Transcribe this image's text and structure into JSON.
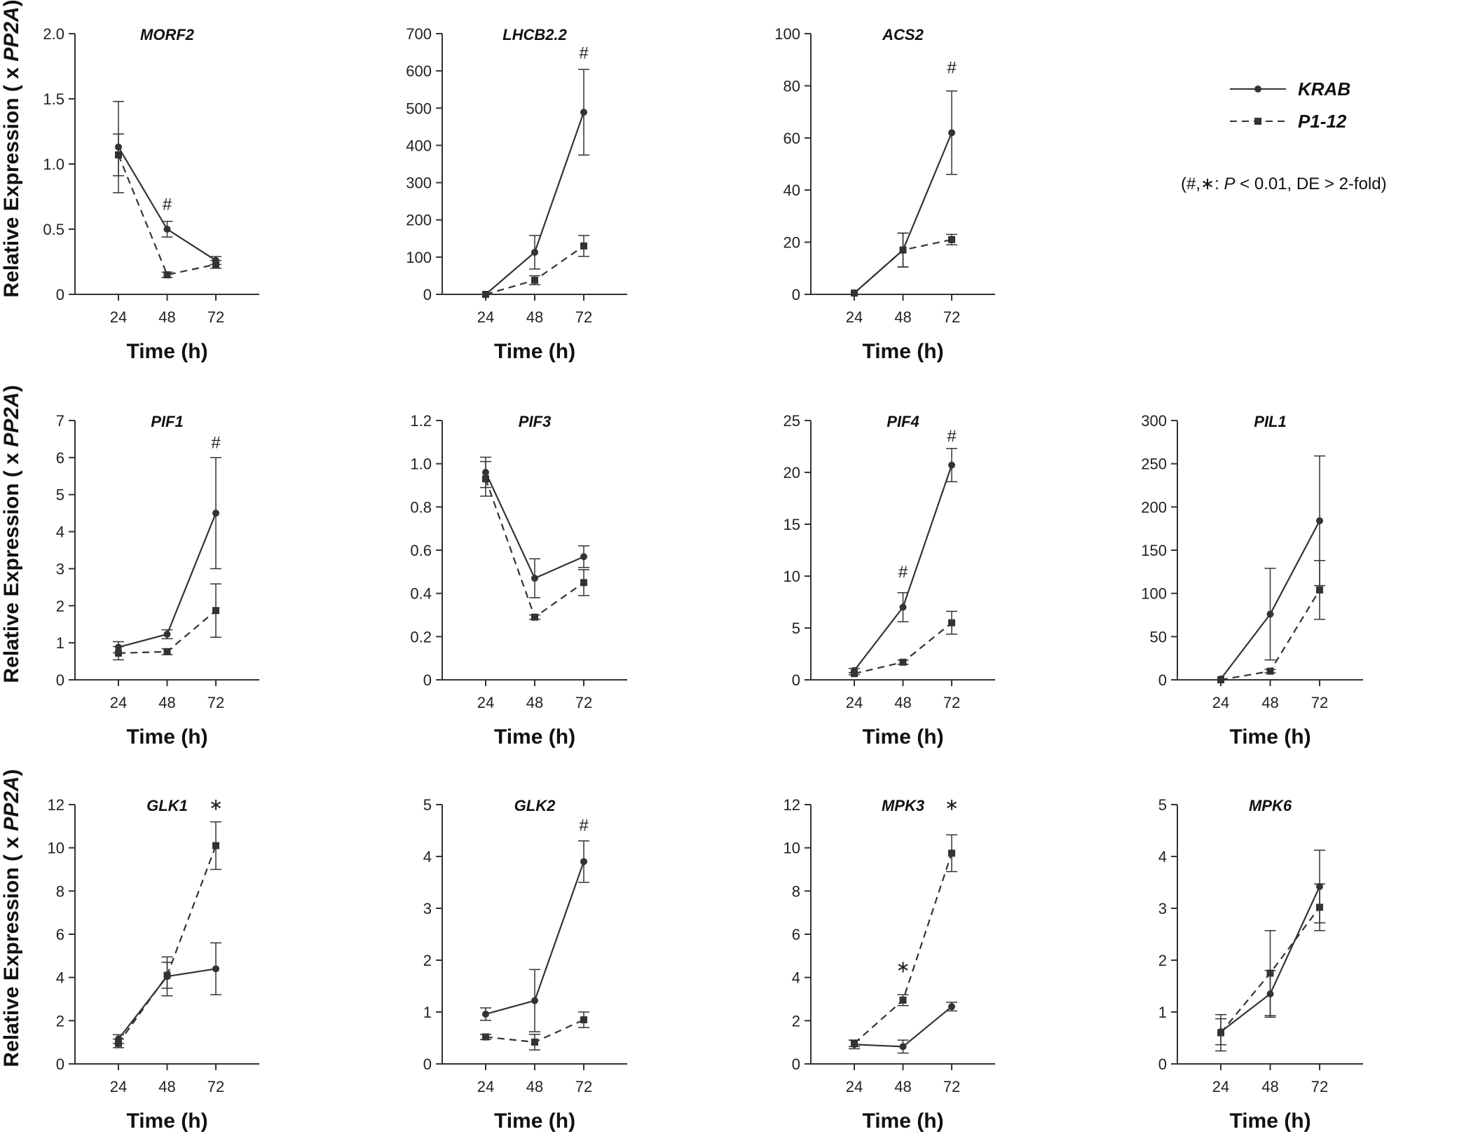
{
  "figure": {
    "ylabel_parts": [
      "Relative Expression ( x ",
      "PP2A",
      ")"
    ],
    "legend": {
      "entries": [
        {
          "name": "KRAB",
          "line": "solid",
          "marker": "circle"
        },
        {
          "name": "P1-12",
          "line": "dashed",
          "marker": "square"
        }
      ],
      "note": {
        "prefix": "(#,",
        "star": "∗",
        "mid": ": ",
        "p": "P",
        "rest": " < 0.01, DE > 2-fold)"
      }
    },
    "color": "#333333"
  },
  "chart_data": [
    {
      "type": "line",
      "title": "MORF2",
      "xlabel": "Time (h)",
      "ylabel": "Relative Expression ( x PP2A)",
      "categories": [
        "24",
        "48",
        "72"
      ],
      "ylim": [
        0,
        2.0
      ],
      "yticks": [
        "0",
        "0.5",
        "1.0",
        "1.5",
        "2.0"
      ],
      "ytick_values": [
        0,
        0.5,
        1.0,
        1.5,
        2.0
      ],
      "series": [
        {
          "name": "KRAB",
          "values": [
            1.13,
            0.5,
            0.26
          ],
          "err": [
            0.35,
            0.06,
            0.03
          ]
        },
        {
          "name": "P1-12",
          "values": [
            1.07,
            0.15,
            0.23
          ],
          "err": [
            0.16,
            0.02,
            0.03
          ]
        }
      ],
      "markers": [
        {
          "x": "48",
          "y": 0.69,
          "symbol": "#"
        }
      ]
    },
    {
      "type": "line",
      "title": "LHCB2.2",
      "xlabel": "Time (h)",
      "categories": [
        "24",
        "48",
        "72"
      ],
      "ylim": [
        0,
        700
      ],
      "yticks": [
        "0",
        "100",
        "200",
        "300",
        "400",
        "500",
        "600",
        "700"
      ],
      "ytick_values": [
        0,
        100,
        200,
        300,
        400,
        500,
        600,
        700
      ],
      "series": [
        {
          "name": "KRAB",
          "values": [
            0,
            113,
            489
          ],
          "err": [
            0,
            45,
            115
          ]
        },
        {
          "name": "P1-12",
          "values": [
            0,
            38,
            130
          ],
          "err": [
            0,
            12,
            28
          ]
        }
      ],
      "markers": [
        {
          "x": "72",
          "y": 648,
          "symbol": "#"
        }
      ]
    },
    {
      "type": "line",
      "title": "ACS2",
      "xlabel": "Time (h)",
      "categories": [
        "24",
        "48",
        "72"
      ],
      "ylim": [
        0,
        100
      ],
      "yticks": [
        "0",
        "20",
        "40",
        "60",
        "80",
        "100"
      ],
      "ytick_values": [
        0,
        20,
        40,
        60,
        80,
        100
      ],
      "series": [
        {
          "name": "KRAB",
          "values": [
            0.5,
            17,
            62
          ],
          "err": [
            0,
            6.5,
            16
          ]
        },
        {
          "name": "P1-12",
          "values": [
            0.5,
            17,
            21
          ],
          "err": [
            0,
            6.5,
            2
          ]
        }
      ],
      "markers": [
        {
          "x": "72",
          "y": 87,
          "symbol": "#"
        }
      ]
    },
    {
      "type": "line",
      "title": "PIF1",
      "xlabel": "Time (h)",
      "categories": [
        "24",
        "48",
        "72"
      ],
      "ylim": [
        0,
        7
      ],
      "yticks": [
        "0",
        "1",
        "2",
        "3",
        "4",
        "5",
        "6",
        "7"
      ],
      "ytick_values": [
        0,
        1,
        2,
        3,
        4,
        5,
        6,
        7
      ],
      "series": [
        {
          "name": "KRAB",
          "values": [
            0.88,
            1.23,
            4.5
          ],
          "err": [
            0.15,
            0.12,
            1.5
          ]
        },
        {
          "name": "P1-12",
          "values": [
            0.72,
            0.76,
            1.87
          ],
          "err": [
            0.18,
            0.08,
            0.72
          ]
        }
      ],
      "markers": [
        {
          "x": "72",
          "y": 6.4,
          "symbol": "#"
        }
      ]
    },
    {
      "type": "line",
      "title": "PIF3",
      "xlabel": "Time (h)",
      "categories": [
        "24",
        "48",
        "72"
      ],
      "ylim": [
        0,
        1.2
      ],
      "yticks": [
        "0",
        "0.2",
        "0.4",
        "0.6",
        "0.8",
        "1.0",
        "1.2"
      ],
      "ytick_values": [
        0,
        0.2,
        0.4,
        0.6,
        0.8,
        1.0,
        1.2
      ],
      "series": [
        {
          "name": "KRAB",
          "values": [
            0.96,
            0.47,
            0.57
          ],
          "err": [
            0.07,
            0.09,
            0.05
          ]
        },
        {
          "name": "P1-12",
          "values": [
            0.93,
            0.29,
            0.45
          ],
          "err": [
            0.08,
            0.01,
            0.06
          ]
        }
      ],
      "markers": []
    },
    {
      "type": "line",
      "title": "PIF4",
      "xlabel": "Time (h)",
      "categories": [
        "24",
        "48",
        "72"
      ],
      "ylim": [
        0,
        25
      ],
      "yticks": [
        "0",
        "5",
        "10",
        "15",
        "20",
        "25"
      ],
      "ytick_values": [
        0,
        5,
        10,
        15,
        20,
        25
      ],
      "series": [
        {
          "name": "KRAB",
          "values": [
            0.9,
            7.0,
            20.7
          ],
          "err": [
            0.2,
            1.4,
            1.6
          ]
        },
        {
          "name": "P1-12",
          "values": [
            0.6,
            1.7,
            5.5
          ],
          "err": [
            0.1,
            0.2,
            1.1
          ]
        }
      ],
      "markers": [
        {
          "x": "48",
          "y": 10.4,
          "symbol": "#"
        },
        {
          "x": "72",
          "y": 23.5,
          "symbol": "#"
        }
      ]
    },
    {
      "type": "line",
      "title": "PIL1",
      "xlabel": "Time (h)",
      "categories": [
        "24",
        "48",
        "72"
      ],
      "ylim": [
        0,
        300
      ],
      "yticks": [
        "0",
        "50",
        "100",
        "150",
        "200",
        "250",
        "300"
      ],
      "ytick_values": [
        0,
        50,
        100,
        150,
        200,
        250,
        300
      ],
      "series": [
        {
          "name": "KRAB",
          "values": [
            1,
            76,
            184
          ],
          "err": [
            0,
            53,
            75
          ]
        },
        {
          "name": "P1-12",
          "values": [
            0,
            10,
            104
          ],
          "err": [
            0,
            2,
            34
          ]
        }
      ],
      "markers": []
    },
    {
      "type": "line",
      "title": "GLK1",
      "xlabel": "Time (h)",
      "categories": [
        "24",
        "48",
        "72"
      ],
      "ylim": [
        0,
        12
      ],
      "yticks": [
        "0",
        "2",
        "4",
        "6",
        "8",
        "10",
        "12"
      ],
      "ytick_values": [
        0,
        2,
        4,
        6,
        8,
        10,
        12
      ],
      "series": [
        {
          "name": "KRAB",
          "values": [
            1.15,
            4.05,
            4.4
          ],
          "err": [
            0.2,
            0.9,
            1.2
          ]
        },
        {
          "name": "P1-12",
          "values": [
            0.95,
            4.1,
            10.1
          ],
          "err": [
            0.2,
            0.6,
            1.1
          ]
        }
      ],
      "markers": [
        {
          "x": "72",
          "y": 12.0,
          "symbol": "∗"
        }
      ]
    },
    {
      "type": "line",
      "title": "GLK2",
      "xlabel": "Time (h)",
      "categories": [
        "24",
        "48",
        "72"
      ],
      "ylim": [
        0,
        5
      ],
      "yticks": [
        "0",
        "1",
        "2",
        "3",
        "4",
        "5"
      ],
      "ytick_values": [
        0,
        1,
        2,
        3,
        4,
        5
      ],
      "series": [
        {
          "name": "KRAB",
          "values": [
            0.96,
            1.22,
            3.9
          ],
          "err": [
            0.12,
            0.6,
            0.4
          ]
        },
        {
          "name": "P1-12",
          "values": [
            0.52,
            0.42,
            0.85
          ],
          "err": [
            0.05,
            0.15,
            0.15
          ]
        }
      ],
      "markers": [
        {
          "x": "72",
          "y": 4.6,
          "symbol": "#"
        }
      ]
    },
    {
      "type": "line",
      "title": "MPK3",
      "xlabel": "Time (h)",
      "categories": [
        "24",
        "48",
        "72"
      ],
      "ylim": [
        0,
        12
      ],
      "yticks": [
        "0",
        "2",
        "4",
        "6",
        "8",
        "10",
        "12"
      ],
      "ytick_values": [
        0,
        2,
        4,
        6,
        8,
        10,
        12
      ],
      "series": [
        {
          "name": "KRAB",
          "values": [
            0.9,
            0.8,
            2.65
          ],
          "err": [
            0.2,
            0.3,
            0.2
          ]
        },
        {
          "name": "P1-12",
          "values": [
            0.95,
            2.95,
            9.75
          ],
          "err": [
            0.15,
            0.25,
            0.85
          ]
        }
      ],
      "markers": [
        {
          "x": "48",
          "y": 4.5,
          "symbol": "∗"
        },
        {
          "x": "72",
          "y": 12.0,
          "symbol": "∗"
        }
      ]
    },
    {
      "type": "line",
      "title": "MPK6",
      "xlabel": "Time (h)",
      "categories": [
        "24",
        "48",
        "72"
      ],
      "ylim": [
        0,
        5
      ],
      "yticks": [
        "0",
        "1",
        "2",
        "3",
        "4",
        "5"
      ],
      "ytick_values": [
        0,
        1,
        2,
        3,
        4,
        5
      ],
      "series": [
        {
          "name": "KRAB",
          "values": [
            0.62,
            1.35,
            3.42
          ],
          "err": [
            0.25,
            0.45,
            0.7
          ]
        },
        {
          "name": "P1-12",
          "values": [
            0.6,
            1.75,
            3.02
          ],
          "err": [
            0.35,
            0.82,
            0.45
          ]
        }
      ],
      "markers": []
    }
  ]
}
